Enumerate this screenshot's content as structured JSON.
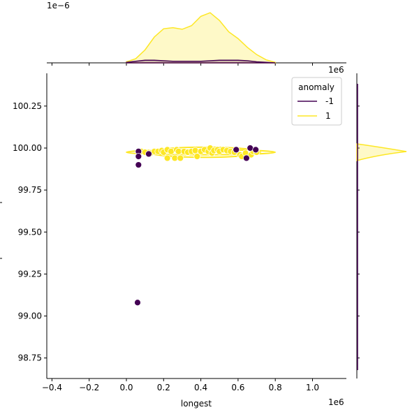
{
  "chart_data": {
    "type": "scatter",
    "title": "",
    "xlabel": "longest",
    "ylabel": "",
    "x_offset_label": "1e6",
    "y_offset_label": "1e6",
    "top_marginal_offset_label": "1e−6",
    "xlim": [
      -0.43,
      1.18
    ],
    "ylim": [
      98.64,
      100.45
    ],
    "xticks": [
      -0.4,
      -0.2,
      0.0,
      0.2,
      0.4,
      0.6,
      0.8,
      1.0
    ],
    "xtick_labels": [
      "−0.4",
      "−0.2",
      "0.0",
      "0.2",
      "0.4",
      "0.6",
      "0.8",
      "1.0"
    ],
    "yticks": [
      98.75,
      99.0,
      99.25,
      99.5,
      99.75,
      100.0,
      100.25
    ],
    "ytick_labels": [
      "98.75",
      "99.00",
      "99.25",
      "99.50",
      "99.75",
      "100.00",
      "100.25"
    ],
    "legend": {
      "title": "anomaly",
      "position": "top-right",
      "entries": [
        {
          "label": "-1",
          "color": "#440154"
        },
        {
          "label": "1",
          "color": "#fde725"
        }
      ]
    },
    "series": [
      {
        "name": "-1",
        "color": "#440154",
        "points": [
          [
            0.065,
            99.98
          ],
          [
            0.065,
            99.95
          ],
          [
            0.065,
            99.9
          ],
          [
            0.06,
            99.08
          ],
          [
            0.12,
            99.965
          ],
          [
            0.59,
            99.99
          ],
          [
            0.645,
            99.94
          ],
          [
            0.665,
            100.0
          ],
          [
            0.695,
            99.99
          ]
        ]
      },
      {
        "name": "1",
        "color": "#fde725",
        "points": [
          [
            0.08,
            99.98
          ],
          [
            0.1,
            99.975
          ],
          [
            0.13,
            99.97
          ],
          [
            0.15,
            99.98
          ],
          [
            0.17,
            99.98
          ],
          [
            0.19,
            99.985
          ],
          [
            0.2,
            99.975
          ],
          [
            0.22,
            99.99
          ],
          [
            0.22,
            99.94
          ],
          [
            0.24,
            99.98
          ],
          [
            0.26,
            99.94
          ],
          [
            0.27,
            99.99
          ],
          [
            0.28,
            99.98
          ],
          [
            0.29,
            99.94
          ],
          [
            0.31,
            99.98
          ],
          [
            0.33,
            99.975
          ],
          [
            0.35,
            99.98
          ],
          [
            0.37,
            99.985
          ],
          [
            0.38,
            99.95
          ],
          [
            0.4,
            99.98
          ],
          [
            0.42,
            99.99
          ],
          [
            0.44,
            99.98
          ],
          [
            0.45,
            100.0
          ],
          [
            0.46,
            99.97
          ],
          [
            0.47,
            99.985
          ],
          [
            0.49,
            99.99
          ],
          [
            0.5,
            99.98
          ],
          [
            0.52,
            99.99
          ],
          [
            0.54,
            99.985
          ],
          [
            0.56,
            99.98
          ],
          [
            0.58,
            99.975
          ],
          [
            0.61,
            99.96
          ],
          [
            0.62,
            99.95
          ],
          [
            0.64,
            99.97
          ],
          [
            0.67,
            99.96
          ],
          [
            0.68,
            99.98
          ],
          [
            0.7,
            99.975
          ]
        ]
      }
    ],
    "kde_contours": [
      {
        "series": "1",
        "cx": 0.4,
        "cy": 99.975,
        "rx": 0.4,
        "ry": 0.015
      },
      {
        "series": "1",
        "cx": 0.42,
        "cy": 99.975,
        "rx": 0.3,
        "ry": 0.03
      },
      {
        "series": "1",
        "cx": 0.64,
        "cy": 99.955,
        "rx": 0.04,
        "ry": 0.012
      }
    ],
    "top_marginal": {
      "x": [
        0,
        0.05,
        0.1,
        0.15,
        0.2,
        0.25,
        0.3,
        0.35,
        0.4,
        0.45,
        0.5,
        0.55,
        0.6,
        0.65,
        0.7,
        0.75,
        0.8
      ],
      "density_1": [
        0.02,
        0.08,
        0.25,
        0.5,
        0.66,
        0.68,
        0.65,
        0.72,
        0.9,
        0.97,
        0.82,
        0.6,
        0.47,
        0.3,
        0.16,
        0.06,
        0.01
      ],
      "density_neg1": [
        0.01,
        0.03,
        0.05,
        0.05,
        0.04,
        0.03,
        0.03,
        0.03,
        0.03,
        0.04,
        0.05,
        0.05,
        0.05,
        0.04,
        0.02,
        0.01,
        0.0
      ]
    }
  }
}
